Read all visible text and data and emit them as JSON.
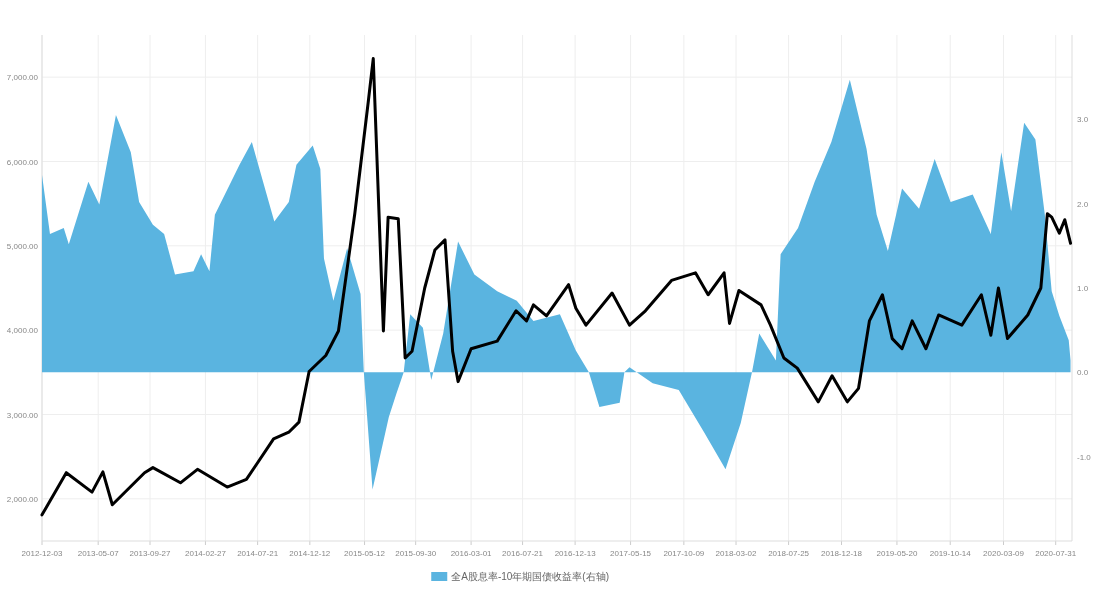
{
  "chart_data": {
    "type": "line",
    "xlim": [
      "2012-12-03",
      "2020-09-14"
    ],
    "xticks": [
      "2012-12-03",
      "2013-05-07",
      "2013-09-27",
      "2014-02-27",
      "2014-07-21",
      "2014-12-12",
      "2015-05-12",
      "2015-09-30",
      "2016-03-01",
      "2016-07-21",
      "2016-12-13",
      "2017-05-15",
      "2017-10-09",
      "2018-03-02",
      "2018-07-25",
      "2018-12-18",
      "2019-05-20",
      "2019-10-14",
      "2020-03-09",
      "2020-07-31"
    ],
    "ylim": [
      1500,
      7500
    ],
    "yticks": [
      {
        "value": 2000,
        "label": "2,000.00"
      },
      {
        "value": 3000,
        "label": "3,000.00"
      },
      {
        "value": 4000,
        "label": "4,000.00"
      },
      {
        "value": 5000,
        "label": "5,000.00"
      },
      {
        "value": 6000,
        "label": "6,000.00"
      },
      {
        "value": 7000,
        "label": "7,000.00"
      }
    ],
    "y2lim": [
      -2,
      4
    ],
    "y2ticks": [
      {
        "value": -1,
        "label": "-1.0"
      },
      {
        "value": 0,
        "label": "0.0"
      },
      {
        "value": 1,
        "label": "1.0"
      },
      {
        "value": 2,
        "label": "2.0"
      },
      {
        "value": 3,
        "label": "3.0"
      }
    ],
    "grid": true,
    "legend": "bottom",
    "series": [
      {
        "name": "全A股息率-10年期国债收益率(右轴)",
        "type": "area",
        "axis": "y2",
        "color": "#5ab4e0",
        "x": [
          "2012-12-03",
          "2012-12-25",
          "2013-02-01",
          "2013-02-15",
          "2013-04-10",
          "2013-05-10",
          "2013-06-25",
          "2013-08-05",
          "2013-08-28",
          "2013-10-05",
          "2013-11-05",
          "2013-12-05",
          "2014-01-25",
          "2014-02-15",
          "2014-03-10",
          "2014-03-25",
          "2014-06-01",
          "2014-07-05",
          "2014-09-05",
          "2014-10-15",
          "2014-11-05",
          "2014-12-20",
          "2015-01-10",
          "2015-01-20",
          "2015-02-15",
          "2015-03-25",
          "2015-05-01",
          "2015-05-10",
          "2015-06-03",
          "2015-07-18",
          "2015-08-08",
          "2015-08-28",
          "2015-09-15",
          "2015-10-20",
          "2015-11-12",
          "2015-12-15",
          "2016-01-25",
          "2016-03-10",
          "2016-05-12",
          "2016-07-05",
          "2016-08-20",
          "2016-11-01",
          "2016-12-15",
          "2017-01-20",
          "2017-02-18",
          "2017-04-15",
          "2017-04-28",
          "2017-05-12",
          "2017-07-15",
          "2017-09-25",
          "2017-12-05",
          "2018-02-01",
          "2018-03-15",
          "2018-04-15",
          "2018-05-05",
          "2018-06-20",
          "2018-07-03",
          "2018-08-20",
          "2018-10-05",
          "2018-11-20",
          "2019-01-10",
          "2019-02-25",
          "2019-03-25",
          "2019-04-25",
          "2019-06-03",
          "2019-07-20",
          "2019-09-01",
          "2019-10-15",
          "2019-12-15",
          "2020-02-03",
          "2020-03-03",
          "2020-03-30",
          "2020-05-05",
          "2020-06-05",
          "2020-07-01",
          "2020-07-20",
          "2020-08-10",
          "2020-09-05",
          "2020-09-10"
        ],
        "values": [
          2.34,
          1.64,
          1.71,
          1.52,
          2.26,
          1.99,
          3.05,
          2.61,
          2.02,
          1.75,
          1.64,
          1.16,
          1.2,
          1.4,
          1.2,
          1.87,
          2.46,
          2.73,
          1.79,
          2.02,
          2.46,
          2.69,
          2.41,
          1.35,
          0.85,
          1.47,
          0.93,
          0,
          -1.39,
          -0.53,
          -0.25,
          0,
          0.69,
          0.53,
          -0.09,
          0.46,
          1.55,
          1.16,
          0.96,
          0.85,
          0.61,
          0.69,
          0.26,
          0,
          -0.41,
          -0.36,
          0,
          0.06,
          -0.13,
          -0.21,
          -0.72,
          -1.15,
          -0.6,
          0,
          0.46,
          0.14,
          1.4,
          1.71,
          2.26,
          2.73,
          3.47,
          2.65,
          1.87,
          1.44,
          2.18,
          1.94,
          2.53,
          2.02,
          2.11,
          1.64,
          2.61,
          1.91,
          2.96,
          2.76,
          1.87,
          0.96,
          0.67,
          0.38,
          0.14
        ]
      },
      {
        "color": "#000000",
        "x": [
          "2012-12-03",
          "2013-02-08",
          "2013-04-20",
          "2013-05-20",
          "2013-06-15",
          "2013-09-12",
          "2013-10-05",
          "2013-12-20",
          "2014-02-05",
          "2014-04-28",
          "2014-06-20",
          "2014-09-03",
          "2014-10-15",
          "2014-11-12",
          "2014-12-10",
          "2015-01-25",
          "2015-03-01",
          "2015-04-15",
          "2015-05-22",
          "2015-06-05",
          "2015-07-03",
          "2015-07-16",
          "2015-08-13",
          "2015-09-01",
          "2015-09-20",
          "2015-10-25",
          "2015-11-22",
          "2015-12-20",
          "2016-01-10",
          "2016-01-25",
          "2016-03-01",
          "2016-05-12",
          "2016-07-03",
          "2016-08-01",
          "2016-08-20",
          "2016-09-25",
          "2016-11-25",
          "2016-12-15",
          "2017-01-12",
          "2017-03-25",
          "2017-05-12",
          "2017-06-25",
          "2017-09-05",
          "2017-11-10",
          "2017-12-15",
          "2018-01-28",
          "2018-02-12",
          "2018-03-10",
          "2018-05-10",
          "2018-06-05",
          "2018-07-12",
          "2018-08-18",
          "2018-10-15",
          "2018-11-22",
          "2019-01-03",
          "2019-02-03",
          "2019-03-05",
          "2019-04-10",
          "2019-05-07",
          "2019-06-03",
          "2019-07-01",
          "2019-08-08",
          "2019-09-12",
          "2019-11-15",
          "2020-01-08",
          "2020-02-03",
          "2020-02-24",
          "2020-03-20",
          "2020-05-15",
          "2020-06-20",
          "2020-07-08",
          "2020-07-20",
          "2020-08-10",
          "2020-08-25",
          "2020-09-10"
        ],
        "values": [
          1810,
          2310,
          2080,
          2320,
          1930,
          2310,
          2370,
          2190,
          2350,
          2140,
          2230,
          2710,
          2790,
          2910,
          3510,
          3700,
          3990,
          5380,
          6700,
          7220,
          3990,
          5340,
          5320,
          3670,
          3750,
          4500,
          4950,
          5070,
          3750,
          3390,
          3780,
          3870,
          4230,
          4110,
          4300,
          4170,
          4540,
          4260,
          4060,
          4440,
          4060,
          4230,
          4590,
          4680,
          4420,
          4680,
          4080,
          4470,
          4300,
          4060,
          3670,
          3550,
          3150,
          3460,
          3150,
          3310,
          4110,
          4420,
          3900,
          3780,
          4110,
          3780,
          4180,
          4060,
          4420,
          3940,
          4500,
          3900,
          4180,
          4500,
          5380,
          5340,
          5150,
          5310,
          5030
        ]
      }
    ]
  }
}
